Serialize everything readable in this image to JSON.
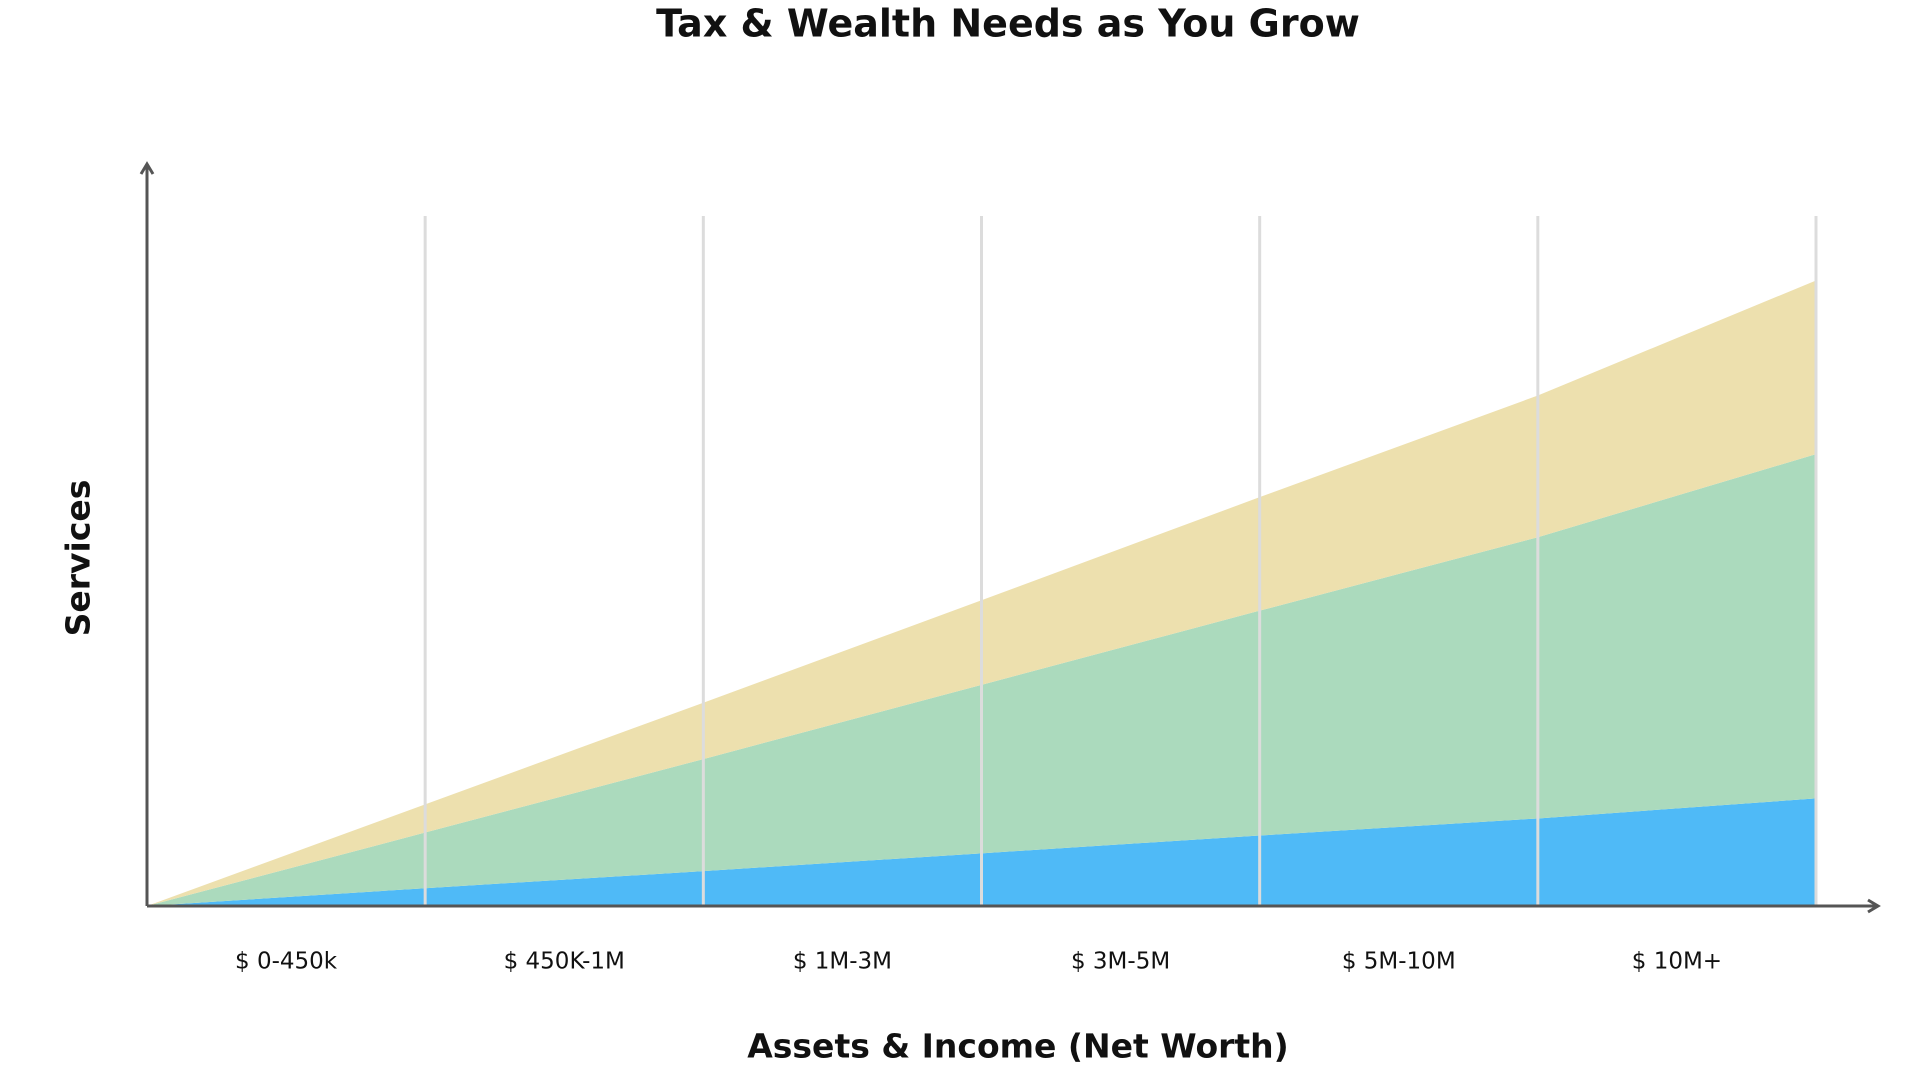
{
  "chart_data": {
    "type": "stacked_area",
    "title": "Tax & Wealth Needs as You Grow",
    "xlabel": "Assets & Income (Net Worth)",
    "ylabel": "Services",
    "categories": [
      "$ 0-450k",
      "$ 450K-1M",
      "$ 1M-3M",
      "$ 3M-5M",
      "$ 5M-10M",
      "$ 10M+"
    ],
    "series": [
      {
        "color": "#4fbaf7",
        "values": [
          2.4,
          4.7,
          7.1,
          9.5,
          11.8,
          14.5
        ]
      },
      {
        "color": "#abdabd",
        "values": [
          7.5,
          15.1,
          22.7,
          30.3,
          37.9,
          46.4
        ]
      },
      {
        "color": "#ede0ae",
        "values": [
          3.8,
          7.6,
          11.4,
          15.3,
          19.1,
          23.4
        ]
      }
    ],
    "ylim": [
      0,
      100
    ],
    "grid": true
  }
}
